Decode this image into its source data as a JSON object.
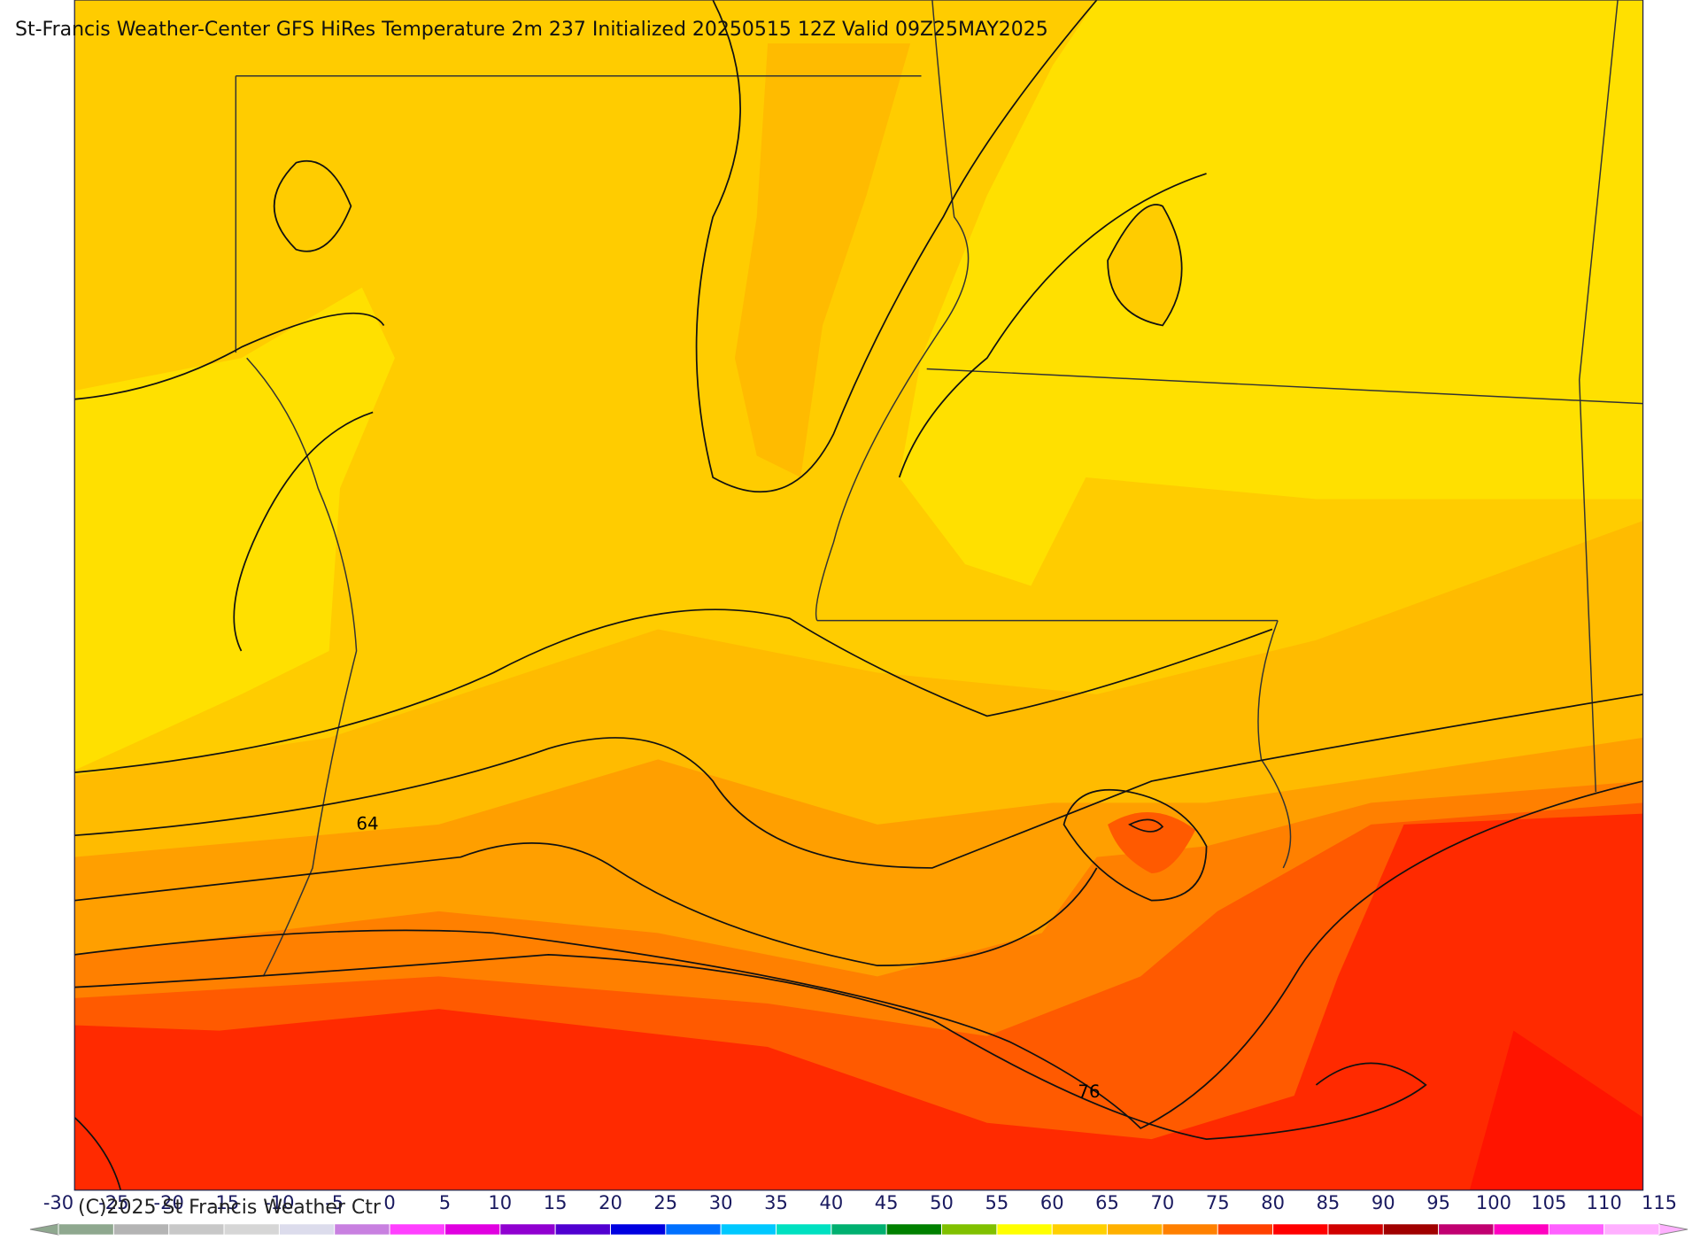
{
  "header": {
    "title": "St-Francis Weather-Center GFS HiRes Temperature 2m  237 Initialized 20250515 12Z Valid 09Z25MAY2025"
  },
  "map": {
    "contour_labels": [
      "64",
      "76"
    ]
  },
  "footer": {
    "copyright": "(C)2025 St Francis Weather Ctr"
  },
  "colorbar": {
    "lim": [
      -30,
      115
    ],
    "ticks": [
      -30,
      -25,
      -20,
      -15,
      -10,
      -5,
      0,
      5,
      10,
      15,
      20,
      25,
      30,
      35,
      40,
      45,
      50,
      55,
      60,
      65,
      70,
      75,
      80,
      85,
      90,
      95,
      100,
      105,
      110,
      115
    ],
    "colors": [
      "#8fa88f",
      "#b4b4b4",
      "#c8c8c8",
      "#d6d6d6",
      "#dcdcec",
      "#c880e0",
      "#ff40ff",
      "#e000e0",
      "#9000d0",
      "#5000d0",
      "#0000e0",
      "#0070ff",
      "#00c8ff",
      "#00e0c0",
      "#00b070",
      "#008000",
      "#80c000",
      "#ffff00",
      "#ffd000",
      "#ffb000",
      "#ff8000",
      "#ff4000",
      "#ff0000",
      "#d00000",
      "#a00000",
      "#c00070",
      "#ff00c0",
      "#ff60ff",
      "#ffb0ff"
    ]
  }
}
